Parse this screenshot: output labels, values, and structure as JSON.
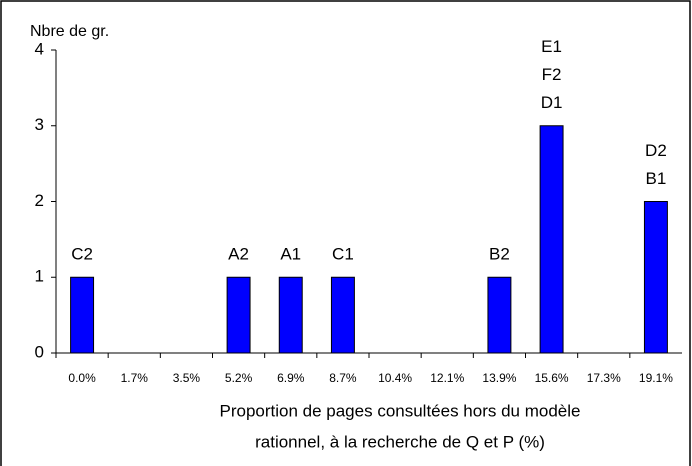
{
  "chart_data": {
    "type": "bar",
    "y_title": "Nbre de gr.",
    "x_title": [
      "Proportion de pages consultées hors du modèle",
      "rationnel, à la recherche de Q et P (%)"
    ],
    "categories": [
      "0.0%",
      "1.7%",
      "3.5%",
      "5.2%",
      "6.9%",
      "8.7%",
      "10.4%",
      "12.1%",
      "13.9%",
      "15.6%",
      "17.3%",
      "19.1%"
    ],
    "values": [
      1,
      0,
      0,
      1,
      1,
      1,
      0,
      0,
      1,
      3,
      0,
      2
    ],
    "annotations": [
      [
        "C2"
      ],
      [],
      [],
      [
        "A2"
      ],
      [
        "A1"
      ],
      [
        "C1"
      ],
      [],
      [],
      [
        "B2"
      ],
      [
        "D1",
        "F2",
        "E1"
      ],
      [],
      [
        "B1",
        "D2"
      ]
    ],
    "color": "#0000ff",
    "ylim": [
      0,
      4
    ],
    "yticks": [
      0,
      1,
      2,
      3,
      4
    ]
  }
}
